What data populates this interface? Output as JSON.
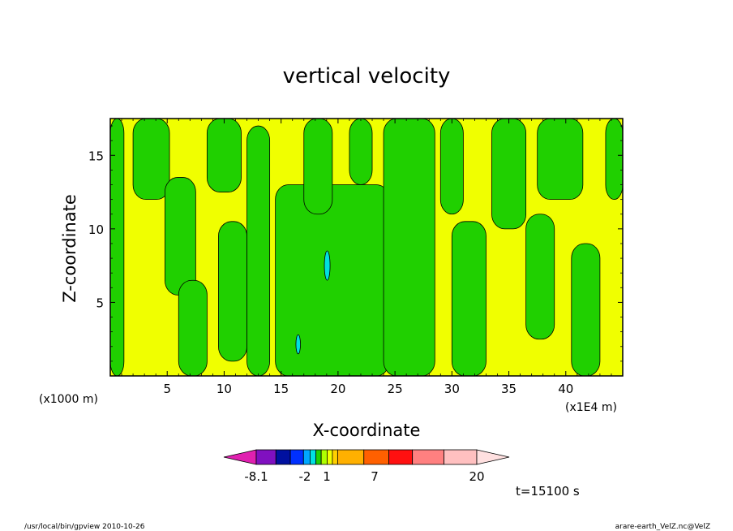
{
  "chart_data": {
    "type": "heatmap",
    "title": "vertical velocity",
    "xlabel": "X-coordinate",
    "ylabel": "Z-coordinate",
    "x_unit_left": "(x1000 m)",
    "x_unit_right": "(x1E4 m)",
    "xlim": [
      0,
      45
    ],
    "ylim": [
      0,
      17.5
    ],
    "x_ticks": [
      "5",
      "10",
      "15",
      "20",
      "25",
      "30",
      "35",
      "40"
    ],
    "y_ticks": [
      "5",
      "10",
      "15"
    ],
    "x_tick_values": [
      5,
      10,
      15,
      20,
      25,
      30,
      35,
      40
    ],
    "y_tick_values": [
      5,
      10,
      15
    ],
    "dominant_field": "#f0ff00",
    "regions": [
      {
        "level": "green",
        "x0": 0.0,
        "x1": 1.2,
        "z0": 0.0,
        "z1": 17.5
      },
      {
        "level": "green",
        "x0": 2.0,
        "x1": 5.2,
        "z0": 12.0,
        "z1": 17.5
      },
      {
        "level": "green",
        "x0": 4.8,
        "x1": 7.5,
        "z0": 5.5,
        "z1": 13.5
      },
      {
        "level": "green",
        "x0": 6.0,
        "x1": 8.5,
        "z0": 0.0,
        "z1": 6.5
      },
      {
        "level": "green",
        "x0": 8.5,
        "x1": 11.5,
        "z0": 12.5,
        "z1": 17.5
      },
      {
        "level": "green",
        "x0": 9.5,
        "x1": 12.0,
        "z0": 1.0,
        "z1": 10.5
      },
      {
        "level": "green",
        "x0": 12.0,
        "x1": 14.0,
        "z0": 0.0,
        "z1": 17.0
      },
      {
        "level": "green",
        "x0": 14.5,
        "x1": 24.5,
        "z0": 0.0,
        "z1": 13.0
      },
      {
        "level": "green",
        "x0": 17.0,
        "x1": 19.5,
        "z0": 11.0,
        "z1": 17.5
      },
      {
        "level": "green",
        "x0": 21.0,
        "x1": 23.0,
        "z0": 13.0,
        "z1": 17.5
      },
      {
        "level": "green",
        "x0": 24.0,
        "x1": 28.5,
        "z0": 0.0,
        "z1": 17.5
      },
      {
        "level": "green",
        "x0": 29.0,
        "x1": 31.0,
        "z0": 11.0,
        "z1": 17.5
      },
      {
        "level": "green",
        "x0": 30.0,
        "x1": 33.0,
        "z0": 0.0,
        "z1": 10.5
      },
      {
        "level": "green",
        "x0": 33.5,
        "x1": 36.5,
        "z0": 10.0,
        "z1": 17.5
      },
      {
        "level": "green",
        "x0": 36.5,
        "x1": 39.0,
        "z0": 2.5,
        "z1": 11.0
      },
      {
        "level": "green",
        "x0": 37.5,
        "x1": 41.5,
        "z0": 12.0,
        "z1": 17.5
      },
      {
        "level": "green",
        "x0": 40.5,
        "x1": 43.0,
        "z0": 0.0,
        "z1": 9.0
      },
      {
        "level": "green",
        "x0": 43.5,
        "x1": 45.0,
        "z0": 12.0,
        "z1": 17.5
      },
      {
        "level": "cyan",
        "x0": 18.8,
        "x1": 19.3,
        "z0": 6.5,
        "z1": 8.5
      },
      {
        "level": "cyan",
        "x0": 16.3,
        "x1": 16.7,
        "z0": 1.5,
        "z1": 2.8
      }
    ],
    "colorbar": {
      "colors": [
        "#e020b0",
        "#8010c0",
        "#0010a0",
        "#0030ff",
        "#00a8ff",
        "#00e0e0",
        "#20d000",
        "#b0ff00",
        "#f0ff00",
        "#ffd000",
        "#ffb000",
        "#ff6000",
        "#ff1010",
        "#ff8080",
        "#ffc0c0",
        "#ffe0e0"
      ],
      "labels": [
        "-8.1",
        "-2",
        "1",
        "7",
        "20"
      ],
      "label_values": [
        -8.1,
        -2,
        1,
        7,
        20
      ]
    },
    "time_label": "t=15100 s"
  },
  "footer": {
    "left": "/usr/local/bin/gpview  2010-10-26",
    "right": "arare-earth_VelZ.nc@VelZ"
  }
}
